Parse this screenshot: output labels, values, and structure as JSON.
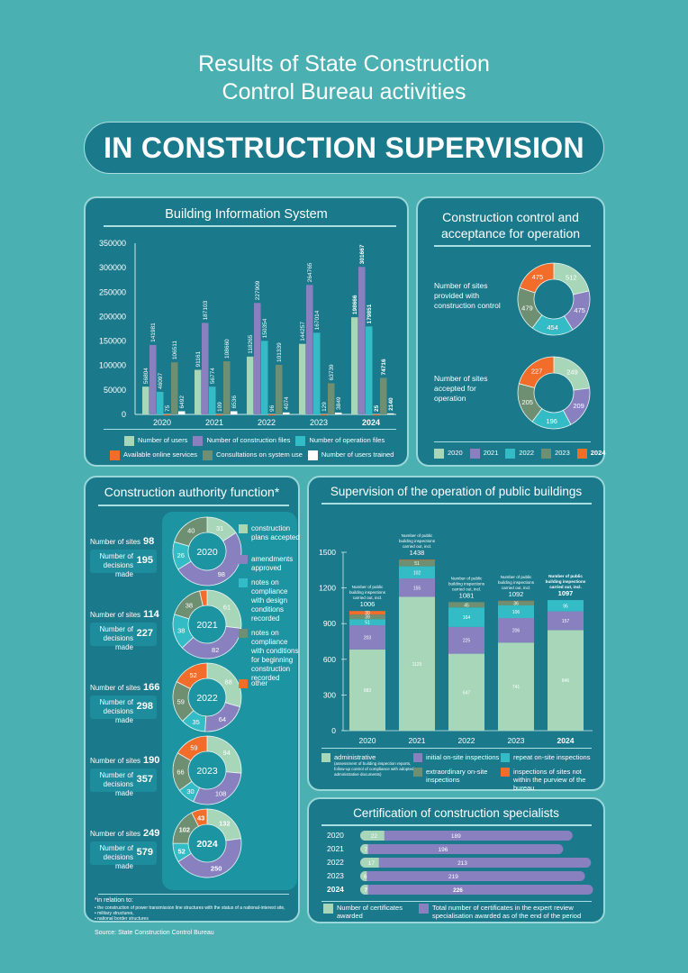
{
  "header": {
    "title_line1": "Results of State Construction",
    "title_line2": "Control Bureau activities",
    "banner": "IN CONSTRUCTION SUPERVISION"
  },
  "colors": {
    "page_bg": "#4bb0b2",
    "panel_bg": "#1a7a8c",
    "light_green": "#a7d6b9",
    "purple": "#8880bf",
    "teal": "#33bcc5",
    "orange": "#f26c2a",
    "dark_green": "#6e8f72",
    "white": "#ffffff"
  },
  "chart_data": [
    {
      "id": "bis",
      "type": "bar",
      "title": "Building Information System",
      "categories": [
        "2020",
        "2021",
        "2022",
        "2023",
        "2024"
      ],
      "ylim": [
        0,
        350000
      ],
      "yticks": [
        "0",
        "50000",
        "100000",
        "150000",
        "200000",
        "250000",
        "300000",
        "350000"
      ],
      "series": [
        {
          "name": "Number of users",
          "color": "#a7d6b9",
          "values": [
            56804,
            91161,
            118265,
            144257,
            198666
          ]
        },
        {
          "name": "Number of construction files",
          "color": "#8880bf",
          "values": [
            141981,
            187103,
            227909,
            264765,
            301667
          ]
        },
        {
          "name": "Number of operation files",
          "color": "#33bcc5",
          "values": [
            46097,
            56774,
            150354,
            167014,
            179851
          ]
        },
        {
          "name": "Available online services",
          "color": "#f26c2a",
          "values": [
            75,
            109,
            96,
            129,
            25
          ]
        },
        {
          "name": "Consultations on system use",
          "color": "#6e8f72",
          "values": [
            106511,
            108660,
            101339,
            63739,
            74716
          ]
        },
        {
          "name": "Number of users trained",
          "color": "#ffffff",
          "values": [
            6492,
            6536,
            4074,
            3849,
            2140
          ]
        }
      ],
      "legend_position": "bottom"
    },
    {
      "id": "control",
      "type": "pie",
      "title": "Construction control and acceptance for operation",
      "legend": [
        "2020",
        "2021",
        "2022",
        "2023",
        "2024"
      ],
      "legend_colors": [
        "#a7d6b9",
        "#8880bf",
        "#33bcc5",
        "#6e8f72",
        "#f26c2a"
      ],
      "donuts": [
        {
          "label": "Number of sites provided with construction control",
          "values": [
            512,
            475,
            454,
            479,
            475
          ]
        },
        {
          "label": "Number of sites accepted for operation",
          "values": [
            249,
            209,
            196,
            205,
            227
          ]
        }
      ]
    },
    {
      "id": "caf",
      "type": "pie",
      "title": "Construction authority function*",
      "categories": [
        "construction plans accepted",
        "amendments approved",
        "notes on compliance with design conditions recorded",
        "notes on compliance with conditions for beginning construction recorded",
        "other"
      ],
      "colors": [
        "#a7d6b9",
        "#8880bf",
        "#33bcc5",
        "#6e8f72",
        "#f26c2a"
      ],
      "years": [
        {
          "year": "2020",
          "sites": "98",
          "decisions": "195",
          "values": [
            31,
            98,
            26,
            40,
            0
          ]
        },
        {
          "year": "2021",
          "sites": "114",
          "decisions": "227",
          "values": [
            61,
            82,
            38,
            38,
            8
          ]
        },
        {
          "year": "2022",
          "sites": "166",
          "decisions": "298",
          "values": [
            88,
            64,
            35,
            59,
            52
          ]
        },
        {
          "year": "2023",
          "sites": "190",
          "decisions": "357",
          "values": [
            94,
            108,
            30,
            66,
            59
          ]
        },
        {
          "year": "2024",
          "sites": "249",
          "decisions": "579",
          "values": [
            132,
            250,
            52,
            102,
            43
          ]
        }
      ]
    },
    {
      "id": "ops",
      "type": "bar",
      "stacked": true,
      "title": "Supervision of the operation of public buildings",
      "categories": [
        "2020",
        "2021",
        "2022",
        "2023",
        "2024"
      ],
      "ylim": [
        0,
        1500
      ],
      "yticks": [
        "0",
        "300",
        "600",
        "900",
        "1200",
        "1500"
      ],
      "totals": [
        "1006",
        "1438",
        "1081",
        "1092",
        "1097"
      ],
      "total_caption": "Number of public building inspections carried out, incl.",
      "series": [
        {
          "name": "administrative",
          "color": "#a7d6b9",
          "values": [
            683,
            1125,
            647,
            741,
            846
          ]
        },
        {
          "name": "initial on-site inspections",
          "color": "#8880bf",
          "values": [
            203,
            155,
            225,
            206,
            157
          ]
        },
        {
          "name": "repeat on-site inspections",
          "color": "#33bcc5",
          "values": [
            51,
            102,
            164,
            106,
            95
          ]
        },
        {
          "name": "extraordinary on-site inspections",
          "color": "#6e8f72",
          "values": [
            39,
            51,
            45,
            36,
            0
          ]
        },
        {
          "name": "inspections of sites not within the purview of the bureau",
          "color": "#f26c2a",
          "values": [
            30,
            5,
            0,
            3,
            0
          ]
        }
      ]
    },
    {
      "id": "cert",
      "type": "bar",
      "orientation": "horizontal",
      "title": "Certification of construction specialists",
      "categories": [
        "2020",
        "2021",
        "2022",
        "2023",
        "2024"
      ],
      "series": [
        {
          "name": "Number of certificates awarded",
          "color": "#a7d6b9",
          "values": [
            22,
            7,
            17,
            6,
            7
          ]
        },
        {
          "name": "Total number of certificates in the expert review specialisation awarded as of the end of the period",
          "color": "#8880bf",
          "values": [
            189,
            196,
            213,
            219,
            226
          ]
        }
      ]
    }
  ],
  "labels": {
    "bis_legend": [
      "Number of users",
      "Number of construction files",
      "Number of operation files",
      "Available online services",
      "Consultations on system use",
      "Number of users trained"
    ],
    "sites_label": "Number of sites",
    "decisions_label_1": "Number of",
    "decisions_label_2": "decisions made",
    "ctrl_label_1": "Number of sites provided with construction control",
    "ctrl_label_2": "Number of sites accepted for operation",
    "caf_legend": [
      "construction plans accepted",
      "amendments approved",
      "notes on compliance with design conditions recorded",
      "notes on compliance with conditions for beginning construction recorded",
      "other"
    ],
    "ops_legend_admin": "administrative",
    "ops_legend_admin_note": "(assessment of building inspection reports, follow-up control of compliance with adopted administrative documents)",
    "ops_legend": [
      "initial on-site inspections",
      "repeat on-site inspections",
      "extraordinary on-site inspections",
      "inspections of sites not within the purview of the bureau"
    ],
    "cert_legend_1": "Number of certificates awarded",
    "cert_legend_2": "Total number of certificates in the expert review specialisation awarded as of the end of the period",
    "footnote_title": "*in relation to:",
    "footnote_1": "• the construction of power transmission line structures with the status of a national-interest site,",
    "footnote_2": "• military structures,",
    "footnote_3": "• national border structures",
    "source": "Source: State Construction Control Bureau"
  }
}
